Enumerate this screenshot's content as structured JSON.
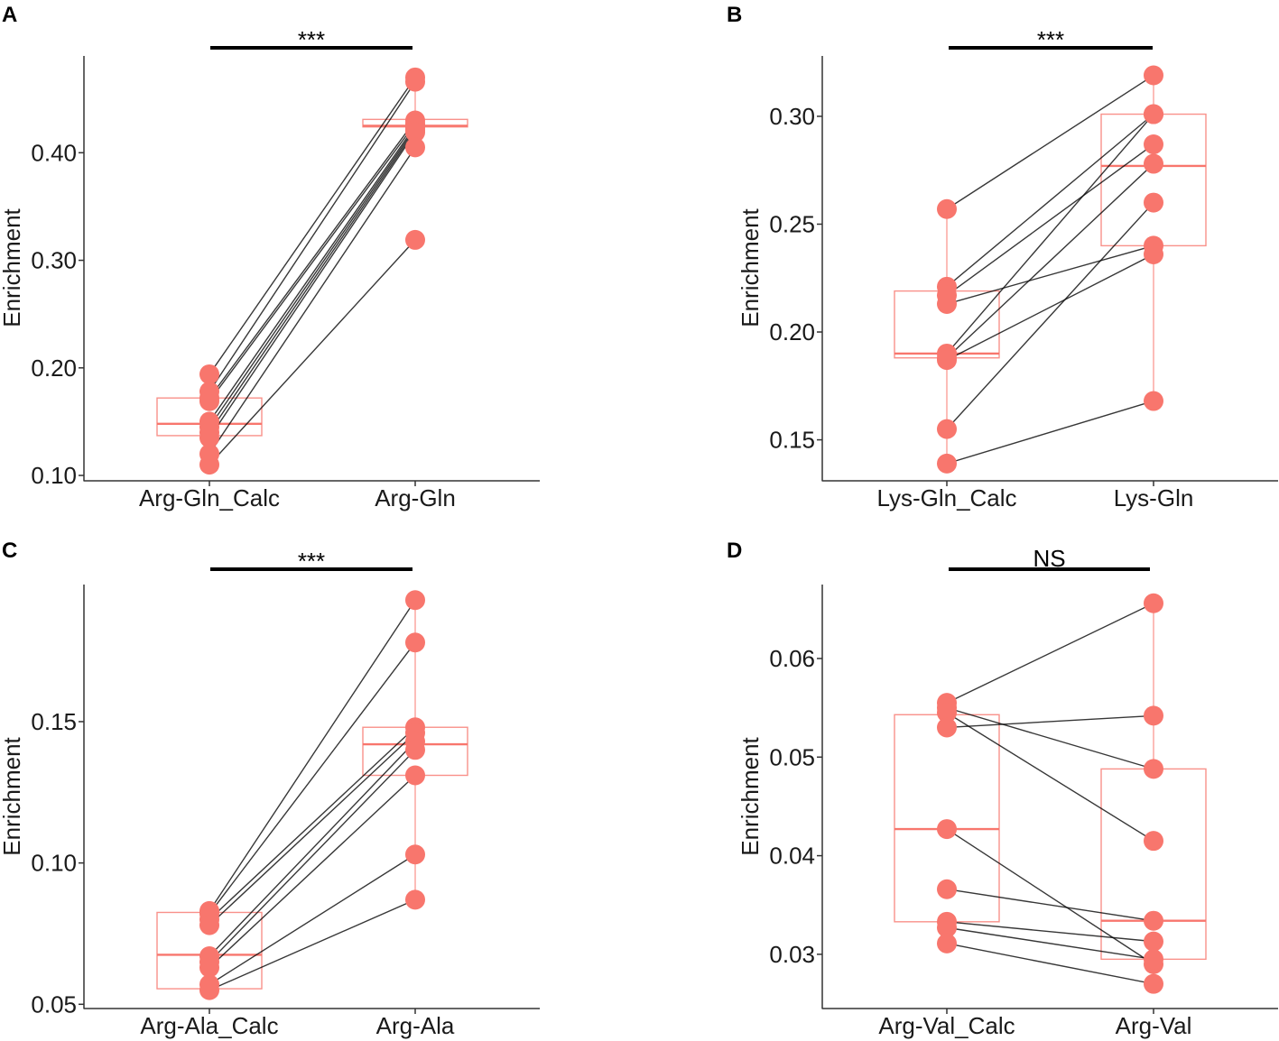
{
  "colors": {
    "point": "#F8766D",
    "box": "#F8766D",
    "line": "#000000",
    "axis": "#333333"
  },
  "chart_data": [
    {
      "panel": "A",
      "type": "boxplot-paired",
      "categories": [
        "Arg-Gln_Calc",
        "Arg-Gln"
      ],
      "ylabel": "Enrichment",
      "ylim": [
        0.095,
        0.49
      ],
      "yticks": [
        0.1,
        0.2,
        0.3,
        0.4
      ],
      "ytick_labels": [
        "0.10",
        "0.20",
        "0.30",
        "0.40"
      ],
      "boxes": [
        {
          "q1": 0.137,
          "median": 0.148,
          "q3": 0.172,
          "min": 0.11,
          "max": 0.194
        },
        {
          "q1": 0.424,
          "median": 0.425,
          "q3": 0.431,
          "min": 0.405,
          "max": 0.47
        }
      ],
      "pairs": [
        [
          0.194,
          0.47
        ],
        [
          0.178,
          0.466
        ],
        [
          0.172,
          0.43
        ],
        [
          0.169,
          0.427
        ],
        [
          0.15,
          0.425
        ],
        [
          0.145,
          0.423
        ],
        [
          0.14,
          0.421
        ],
        [
          0.135,
          0.419
        ],
        [
          0.12,
          0.405
        ],
        [
          0.11,
          0.319
        ]
      ],
      "significance": "***"
    },
    {
      "panel": "B",
      "type": "boxplot-paired",
      "categories": [
        "Lys-Gln_Calc",
        "Lys-Gln"
      ],
      "ylabel": "Enrichment",
      "ylim": [
        0.131,
        0.328
      ],
      "yticks": [
        0.15,
        0.2,
        0.25,
        0.3
      ],
      "ytick_labels": [
        "0.15",
        "0.20",
        "0.25",
        "0.30"
      ],
      "boxes": [
        {
          "q1": 0.188,
          "median": 0.19,
          "q3": 0.219,
          "min": 0.139,
          "max": 0.257
        },
        {
          "q1": 0.24,
          "median": 0.277,
          "q3": 0.301,
          "min": 0.168,
          "max": 0.319
        }
      ],
      "pairs": [
        [
          0.257,
          0.319
        ],
        [
          0.221,
          0.301
        ],
        [
          0.217,
          0.287
        ],
        [
          0.213,
          0.24
        ],
        [
          0.19,
          0.301
        ],
        [
          0.188,
          0.278
        ],
        [
          0.187,
          0.236
        ],
        [
          0.155,
          0.26
        ],
        [
          0.139,
          0.168
        ]
      ],
      "significance": "***"
    },
    {
      "panel": "C",
      "type": "boxplot-paired",
      "categories": [
        "Arg-Ala_Calc",
        "Arg-Ala"
      ],
      "ylabel": "Enrichment",
      "ylim": [
        0.0485,
        0.1985
      ],
      "yticks": [
        0.05,
        0.1,
        0.15
      ],
      "ytick_labels": [
        "0.05",
        "0.10",
        "0.15"
      ],
      "boxes": [
        {
          "q1": 0.0555,
          "median": 0.0675,
          "q3": 0.0825,
          "min": 0.055,
          "max": 0.083
        },
        {
          "q1": 0.131,
          "median": 0.142,
          "q3": 0.148,
          "min": 0.087,
          "max": 0.193
        }
      ],
      "pairs": [
        [
          0.083,
          0.193
        ],
        [
          0.082,
          0.178
        ],
        [
          0.08,
          0.148
        ],
        [
          0.078,
          0.146
        ],
        [
          0.067,
          0.143
        ],
        [
          0.065,
          0.14
        ],
        [
          0.063,
          0.131
        ],
        [
          0.057,
          0.103
        ],
        [
          0.055,
          0.087
        ]
      ],
      "significance": "***"
    },
    {
      "panel": "D",
      "type": "boxplot-paired",
      "categories": [
        "Arg-Val_Calc",
        "Arg-Val"
      ],
      "ylabel": "Enrichment",
      "ylim": [
        0.0245,
        0.0675
      ],
      "yticks": [
        0.03,
        0.04,
        0.05,
        0.06
      ],
      "ytick_labels": [
        "0.03",
        "0.04",
        "0.05",
        "0.06"
      ],
      "boxes": [
        {
          "q1": 0.0333,
          "median": 0.0427,
          "q3": 0.0543,
          "min": 0.0311,
          "max": 0.0555
        },
        {
          "q1": 0.0295,
          "median": 0.0334,
          "q3": 0.0488,
          "min": 0.027,
          "max": 0.0656
        }
      ],
      "pairs": [
        [
          0.0555,
          0.0656
        ],
        [
          0.055,
          0.0488
        ],
        [
          0.0545,
          0.0415
        ],
        [
          0.053,
          0.0542
        ],
        [
          0.0427,
          0.029
        ],
        [
          0.0366,
          0.0334
        ],
        [
          0.0333,
          0.0313
        ],
        [
          0.0327,
          0.0295
        ],
        [
          0.0311,
          0.027
        ]
      ],
      "significance": "NS"
    }
  ]
}
